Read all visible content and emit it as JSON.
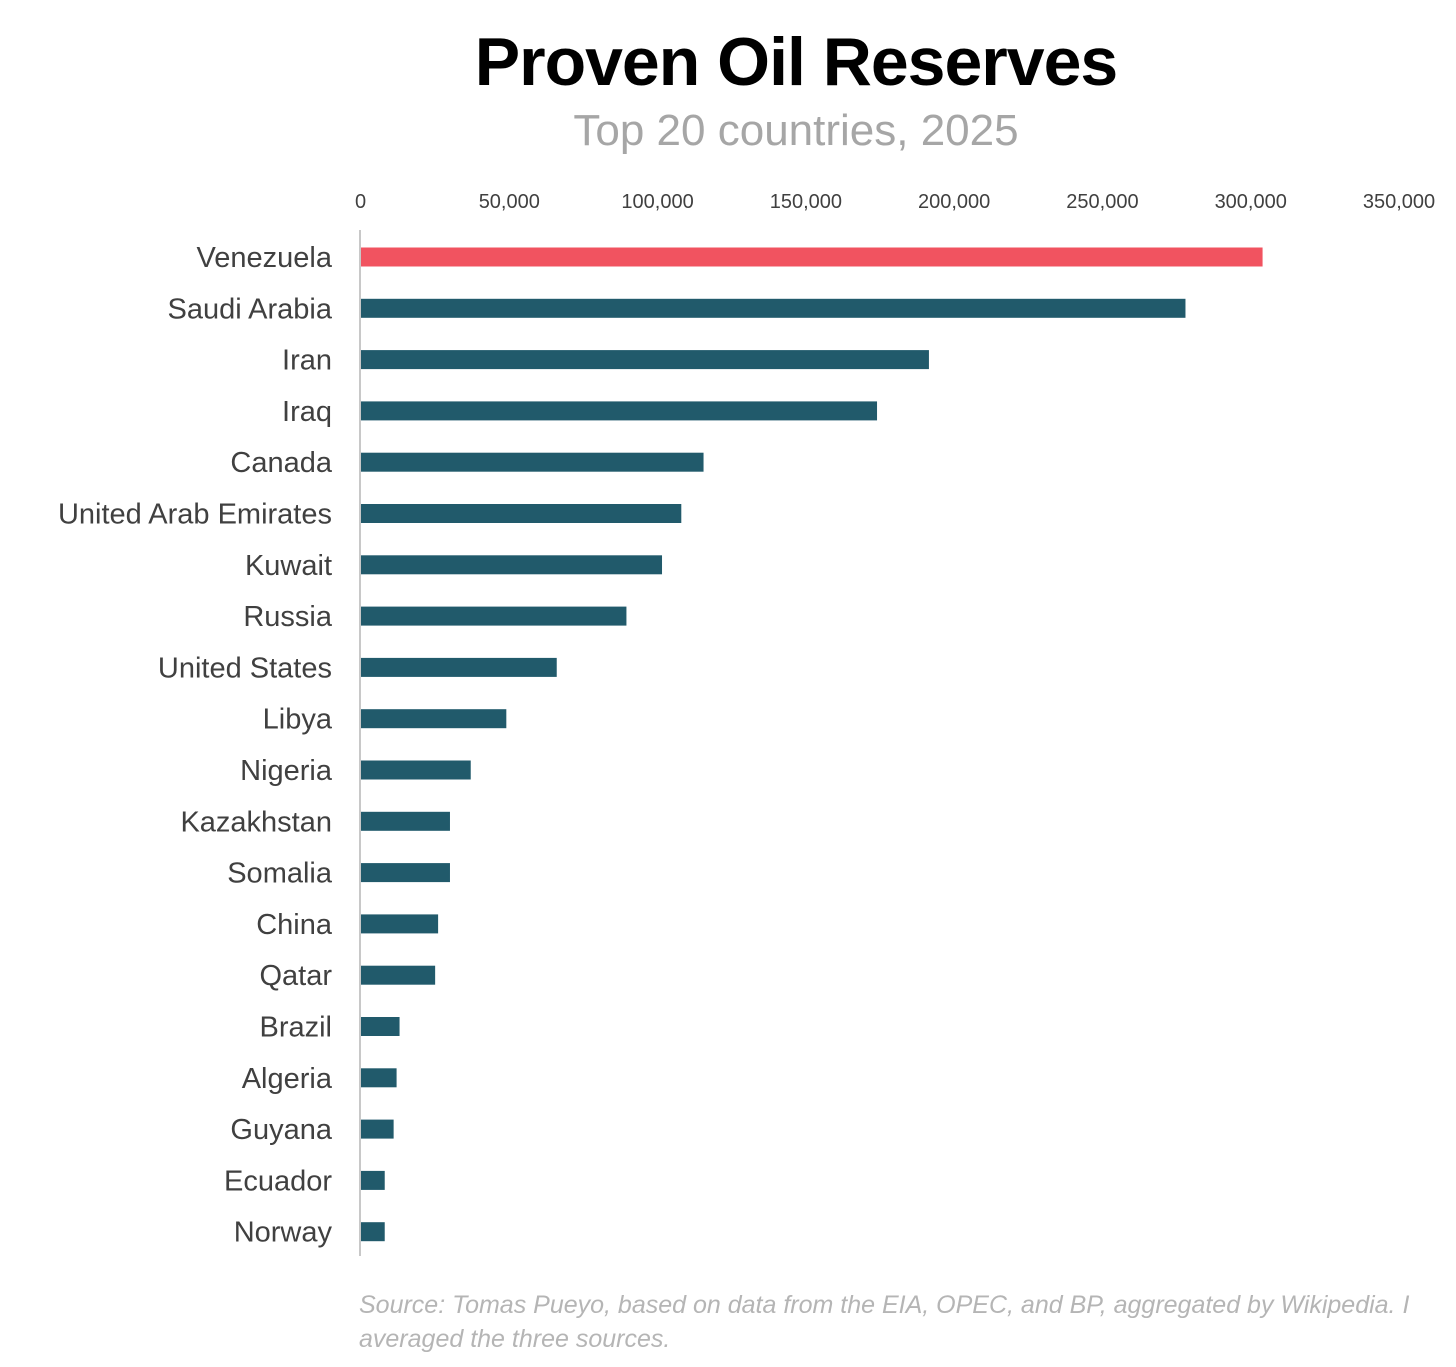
{
  "chart_data": {
    "type": "bar",
    "orientation": "horizontal",
    "title": "Proven Oil Reserves",
    "subtitle": "Top 20 countries, 2025",
    "source": "Source: Tomas Pueyo, based on data from the EIA, OPEC, and BP, aggregated by Wikipedia. I averaged the three sources.",
    "categories": [
      "Venezuela",
      "Saudi Arabia",
      "Iran",
      "Iraq",
      "Canada",
      "United Arab Emirates",
      "Kuwait",
      "Russia",
      "United States",
      "Libya",
      "Nigeria",
      "Kazakhstan",
      "Somalia",
      "China",
      "Qatar",
      "Brazil",
      "Algeria",
      "Guyana",
      "Ecuador",
      "Norway"
    ],
    "values": [
      304000,
      278000,
      191500,
      174000,
      115500,
      108000,
      101500,
      89500,
      66000,
      49000,
      37000,
      30000,
      30000,
      26000,
      25000,
      13000,
      12000,
      11000,
      8000,
      8000
    ],
    "highlight_category": "Venezuela",
    "colors": {
      "highlight": "#f15360",
      "bar": "#215a6b",
      "axis_line": "#c8c8c8",
      "tick_text": "#404040",
      "category_text": "#404040"
    },
    "xlim": [
      0,
      350000
    ],
    "xticks": [
      0,
      50000,
      100000,
      150000,
      200000,
      250000,
      300000,
      350000
    ],
    "xtick_labels": [
      "0",
      "50,000",
      "100,000",
      "150,000",
      "200,000",
      "250,000",
      "300,000",
      "350,000"
    ],
    "xaxis_position": "top",
    "grid": false,
    "legend": "none"
  }
}
